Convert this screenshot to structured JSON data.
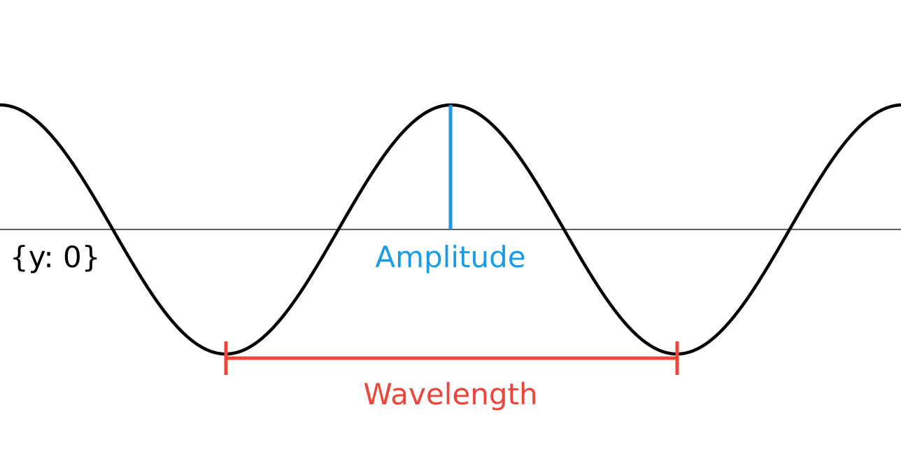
{
  "labels": {
    "baseline": "{y: 0}",
    "amplitude": "Amplitude",
    "wavelength": "Wavelength"
  },
  "colors": {
    "wave": "#000000",
    "baseline": "#000000",
    "amplitude": "#1a9be6",
    "wavelength": "#f0443a"
  }
}
